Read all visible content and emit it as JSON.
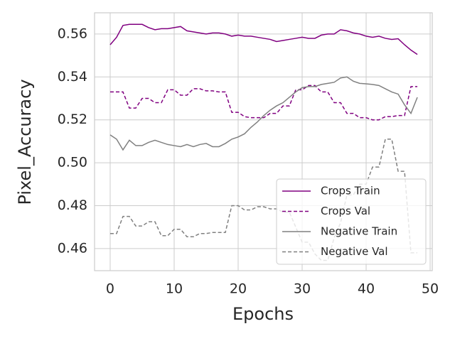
{
  "chart_data": {
    "type": "line",
    "x_label": "Epochs",
    "y_label": "Pixel_Accuracy",
    "x": [
      0,
      1,
      2,
      3,
      4,
      5,
      6,
      7,
      8,
      9,
      10,
      11,
      12,
      13,
      14,
      15,
      16,
      17,
      18,
      19,
      20,
      21,
      22,
      23,
      24,
      25,
      26,
      27,
      28,
      29,
      30,
      31,
      32,
      33,
      34,
      35,
      36,
      37,
      38,
      39,
      40,
      41,
      42,
      43,
      44,
      45,
      46,
      47,
      48
    ],
    "series": [
      {
        "name": "Crops Train",
        "color": "#800080",
        "linestyle": "solid",
        "values": [
          0.555,
          0.5585,
          0.564,
          0.5645,
          0.5645,
          0.5645,
          0.563,
          0.562,
          0.5625,
          0.5625,
          0.563,
          0.5635,
          0.5615,
          0.561,
          0.5605,
          0.56,
          0.5605,
          0.5605,
          0.56,
          0.559,
          0.5595,
          0.559,
          0.559,
          0.5585,
          0.558,
          0.5575,
          0.5565,
          0.557,
          0.5575,
          0.558,
          0.5585,
          0.558,
          0.558,
          0.5595,
          0.56,
          0.56,
          0.562,
          0.5615,
          0.5605,
          0.56,
          0.559,
          0.5585,
          0.559,
          0.558,
          0.5575,
          0.5578,
          0.555,
          0.5525,
          0.5505
        ]
      },
      {
        "name": "Crops Val",
        "color": "#800080",
        "linestyle": "dashed",
        "values": [
          0.533,
          0.533,
          0.533,
          0.5255,
          0.5255,
          0.53,
          0.53,
          0.528,
          0.528,
          0.534,
          0.534,
          0.5315,
          0.5315,
          0.5345,
          0.5345,
          0.5335,
          0.5335,
          0.533,
          0.533,
          0.5235,
          0.5235,
          0.5215,
          0.521,
          0.521,
          0.521,
          0.523,
          0.523,
          0.5265,
          0.5265,
          0.534,
          0.534,
          0.536,
          0.536,
          0.533,
          0.533,
          0.528,
          0.528,
          0.523,
          0.523,
          0.521,
          0.521,
          0.52,
          0.52,
          0.5215,
          0.5215,
          0.522,
          0.522,
          0.5355,
          0.5355
        ]
      },
      {
        "name": "Negative Train",
        "color": "#808080",
        "linestyle": "solid",
        "values": [
          0.513,
          0.511,
          0.506,
          0.5105,
          0.508,
          0.508,
          0.5095,
          0.5105,
          0.5095,
          0.5085,
          0.508,
          0.5075,
          0.5085,
          0.5075,
          0.5085,
          0.509,
          0.5075,
          0.5075,
          0.509,
          0.511,
          0.512,
          0.5135,
          0.5165,
          0.519,
          0.522,
          0.5245,
          0.5265,
          0.528,
          0.5305,
          0.533,
          0.535,
          0.5355,
          0.5355,
          0.5365,
          0.537,
          0.5375,
          0.5395,
          0.54,
          0.538,
          0.537,
          0.5368,
          0.5365,
          0.536,
          0.5345,
          0.533,
          0.532,
          0.527,
          0.523,
          0.5305
        ]
      },
      {
        "name": "Negative Val",
        "color": "#808080",
        "linestyle": "dashed",
        "values": [
          0.467,
          0.467,
          0.475,
          0.475,
          0.4705,
          0.4705,
          0.4725,
          0.4725,
          0.466,
          0.466,
          0.469,
          0.469,
          0.4655,
          0.4655,
          0.467,
          0.467,
          0.4675,
          0.4675,
          0.4675,
          0.48,
          0.48,
          0.478,
          0.478,
          0.4795,
          0.4795,
          0.4785,
          0.4785,
          0.477,
          0.477,
          0.47,
          0.463,
          0.463,
          0.4575,
          0.4545,
          0.4545,
          0.465,
          0.472,
          0.485,
          0.485,
          0.49,
          0.49,
          0.498,
          0.498,
          0.511,
          0.511,
          0.496,
          0.496,
          0.458,
          0.458
        ]
      }
    ],
    "xlim": [
      -2.44,
      50.33
    ],
    "ylim": [
      0.4497,
      0.5699
    ],
    "xticks": [
      0,
      10,
      20,
      30,
      40,
      50
    ],
    "yticks": [
      {
        "value": 0.46,
        "label": "0.46"
      },
      {
        "value": 0.48,
        "label": "0.48"
      },
      {
        "value": 0.5,
        "label": "0.50"
      },
      {
        "value": 0.52,
        "label": "0.52"
      },
      {
        "value": 0.54,
        "label": "0.54"
      },
      {
        "value": 0.56,
        "label": "0.56"
      }
    ],
    "grid": true,
    "legend": "lower right"
  }
}
